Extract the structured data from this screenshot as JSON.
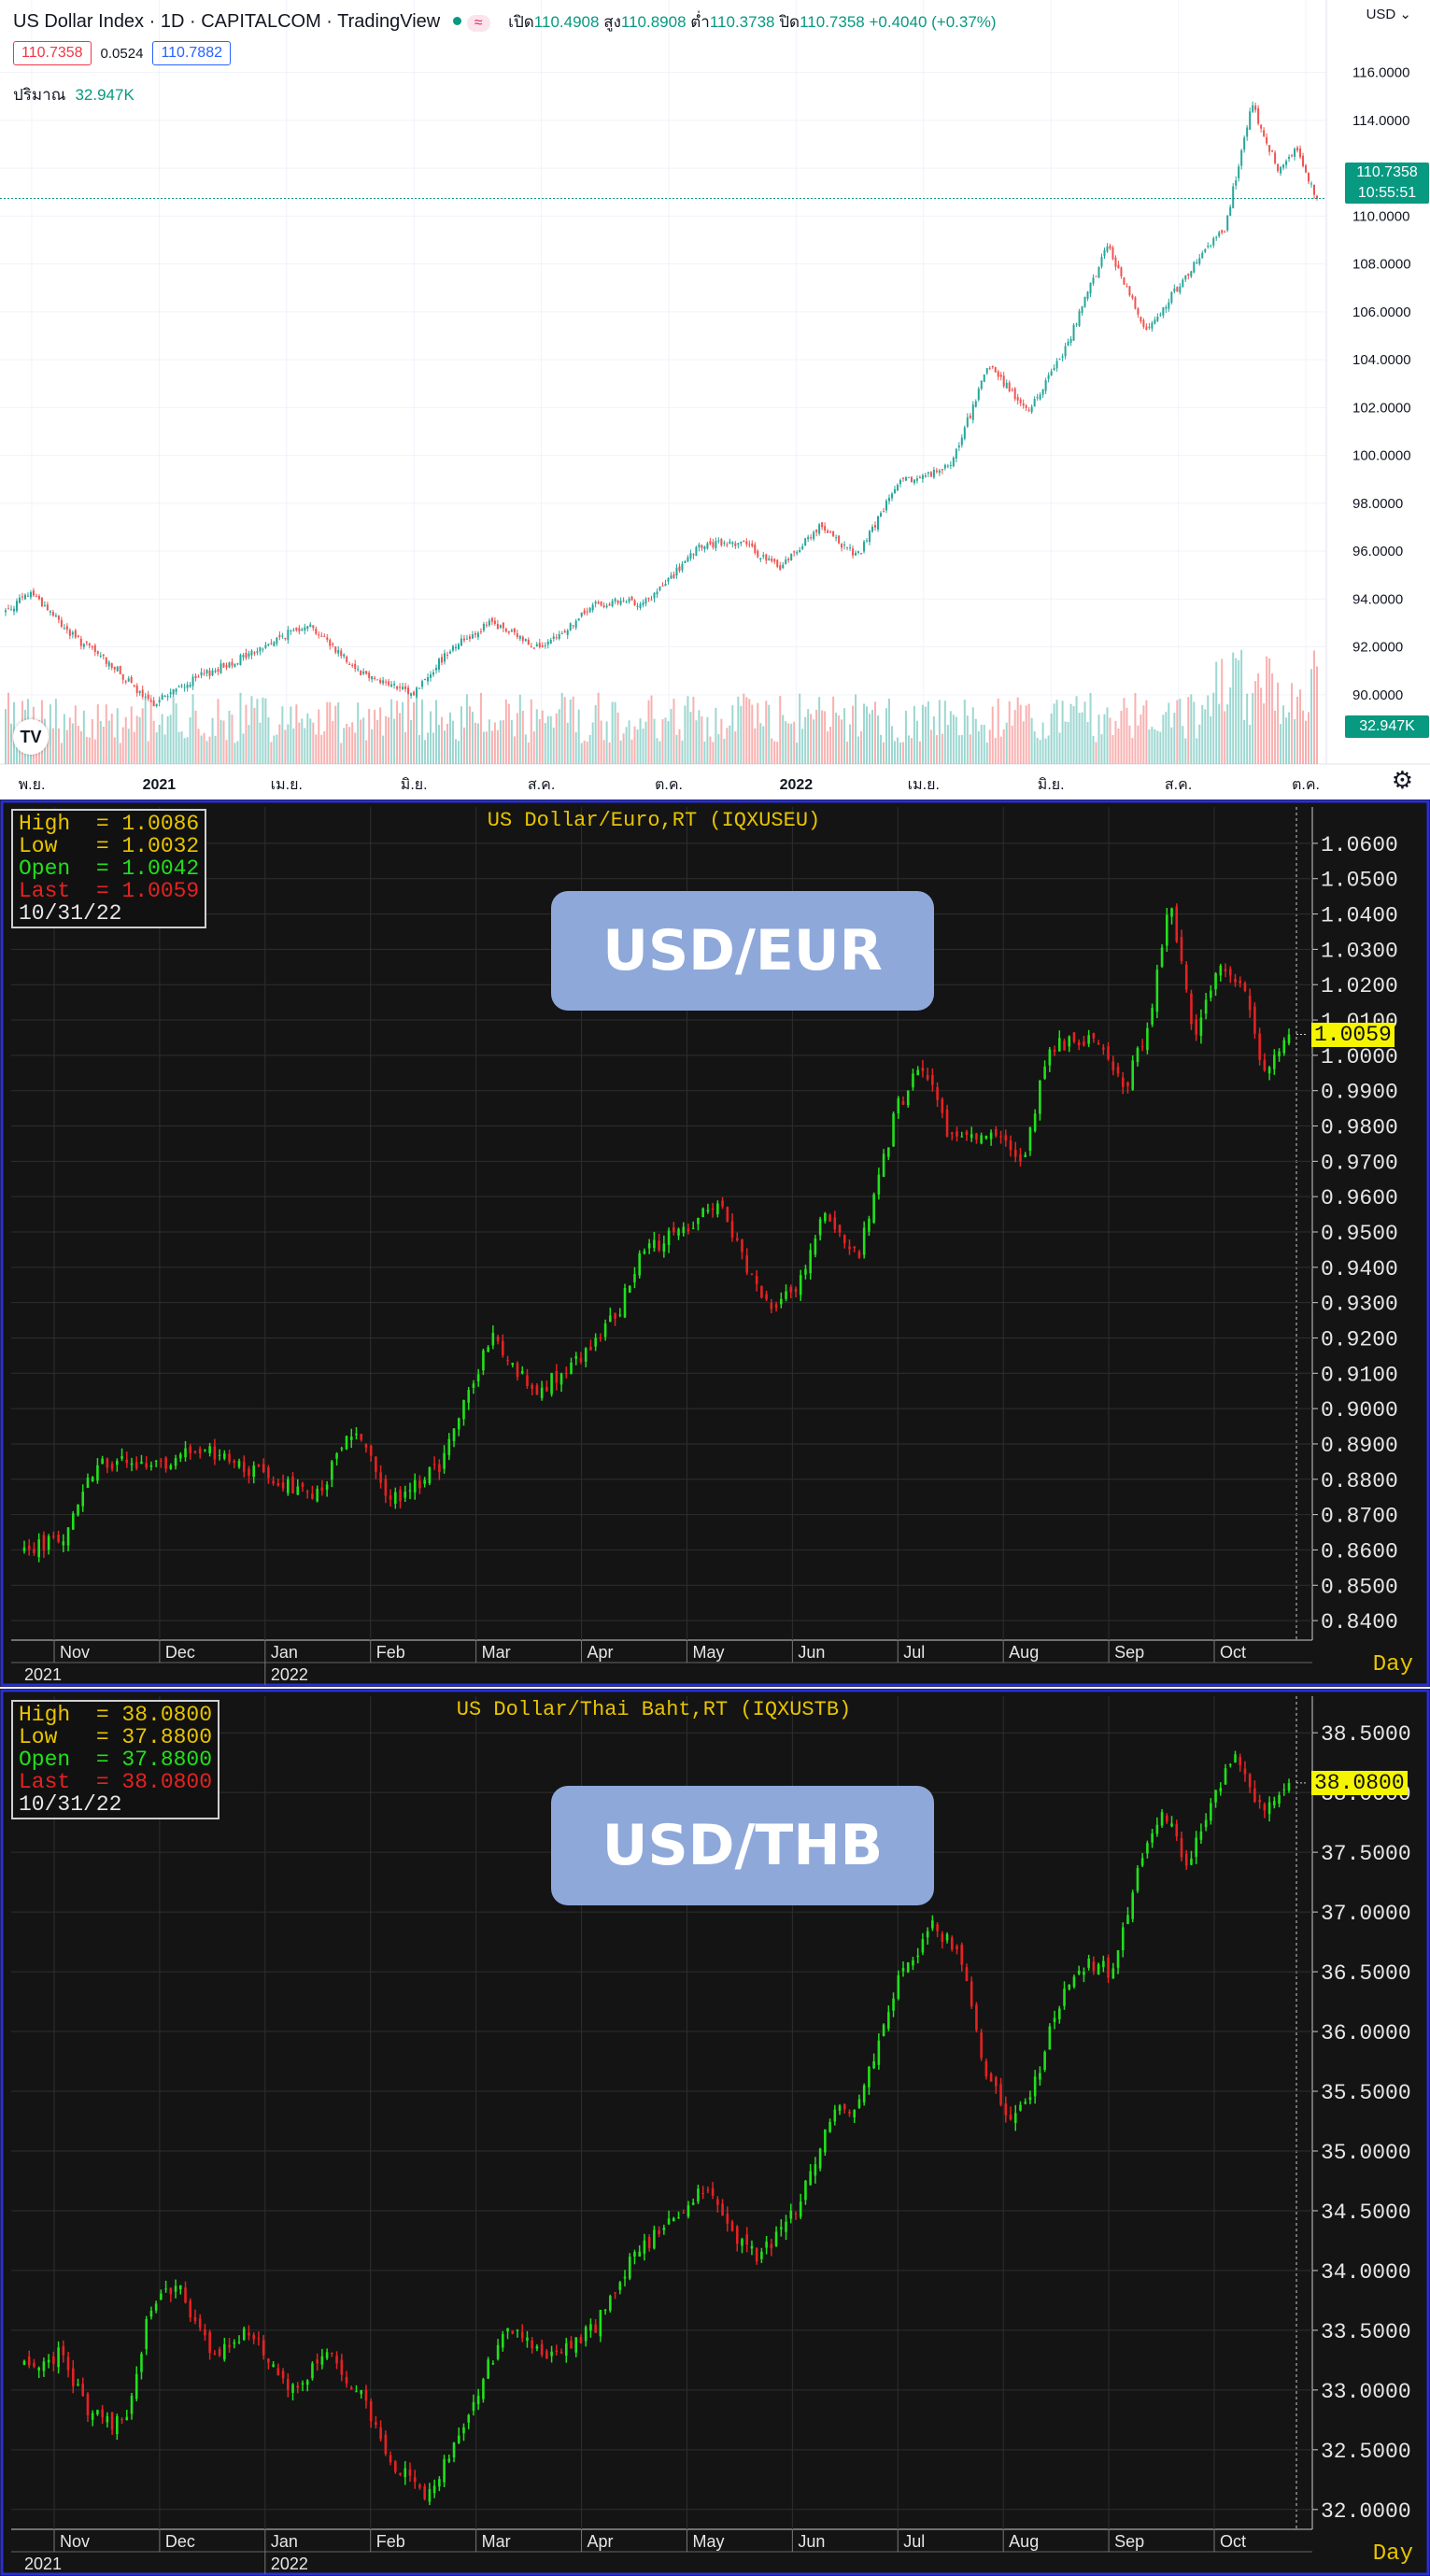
{
  "tradingview": {
    "symbol": "US Dollar Index",
    "interval": "1D",
    "broker": "CAPITALCOM",
    "platform": "TradingView",
    "wave_badge": "≈",
    "ohlc": {
      "open_label": "เปิด",
      "open": "110.4908",
      "high_label": "สูง",
      "high": "110.8908",
      "low_label": "ต่ำ",
      "low": "110.3738",
      "close_label": "ปิด",
      "close": "110.7358",
      "change": "+0.4040 (+0.37%)"
    },
    "bid": "110.7358",
    "spread": "0.0524",
    "ask": "110.7882",
    "volume_label": "ปริมาณ",
    "volume": "32.947K",
    "currency": "USD",
    "price_tag": "110.7358",
    "countdown": "10:55:51",
    "volume_tag": "32.947K",
    "logo": "TV",
    "settings_icon": "gear-icon",
    "colors": {
      "up": "#26a69a",
      "down": "#ef5350",
      "accent": "#089981"
    }
  },
  "chart_data": [
    {
      "type": "candlestick",
      "title": "US Dollar Index · 1D · CAPITALCOM",
      "y_ticks": [
        90,
        92,
        94,
        96,
        98,
        100,
        102,
        104,
        106,
        108,
        110,
        112,
        114,
        116
      ],
      "y_tick_labels": [
        "90.0000",
        "92.0000",
        "94.0000",
        "96.0000",
        "98.0000",
        "100.0000",
        "102.0000",
        "104.0000",
        "106.0000",
        "108.0000",
        "110.0000",
        "112.0000",
        "114.0000",
        "116.0000"
      ],
      "ylim": [
        88.2,
        117.0
      ],
      "x_tick_labels": [
        "พ.ย.",
        "2021",
        "เม.ย.",
        "มิ.ย.",
        "ส.ค.",
        "ต.ค.",
        "2022",
        "เม.ย.",
        "มิ.ย.",
        "ส.ค.",
        "ต.ค."
      ],
      "x_range": [
        "2020-11",
        "2022-10"
      ],
      "last": 110.7358,
      "keypoints": [
        [
          0,
          93.5
        ],
        [
          0.02,
          94.3
        ],
        [
          0.05,
          92.5
        ],
        [
          0.08,
          91.3
        ],
        [
          0.11,
          89.6
        ],
        [
          0.15,
          90.8
        ],
        [
          0.19,
          91.8
        ],
        [
          0.23,
          93.0
        ],
        [
          0.27,
          91.0
        ],
        [
          0.31,
          90.0
        ],
        [
          0.34,
          92.0
        ],
        [
          0.37,
          93.0
        ],
        [
          0.41,
          91.9
        ],
        [
          0.45,
          93.8
        ],
        [
          0.49,
          93.9
        ],
        [
          0.53,
          96.2
        ],
        [
          0.56,
          96.4
        ],
        [
          0.59,
          95.3
        ],
        [
          0.62,
          97.0
        ],
        [
          0.65,
          95.8
        ],
        [
          0.68,
          98.8
        ],
        [
          0.72,
          99.5
        ],
        [
          0.75,
          103.8
        ],
        [
          0.78,
          101.8
        ],
        [
          0.81,
          104.7
        ],
        [
          0.84,
          108.8
        ],
        [
          0.87,
          105.2
        ],
        [
          0.9,
          107.5
        ],
        [
          0.93,
          109.5
        ],
        [
          0.95,
          114.7
        ],
        [
          0.97,
          112.0
        ],
        [
          0.985,
          112.8
        ],
        [
          1.0,
          110.7
        ]
      ],
      "volume_max_label": "32.947K"
    },
    {
      "type": "candlestick",
      "title": "US Dollar/Euro,RT (IQXUSEU)",
      "y_ticks": [
        0.84,
        0.85,
        0.86,
        0.87,
        0.88,
        0.89,
        0.9,
        0.91,
        0.92,
        0.93,
        0.94,
        0.95,
        0.96,
        0.97,
        0.98,
        0.99,
        1.0,
        1.01,
        1.02,
        1.03,
        1.04,
        1.05,
        1.06
      ],
      "y_tick_labels": [
        "0.8400",
        "0.8500",
        "0.8600",
        "0.8700",
        "0.8800",
        "0.8900",
        "0.9000",
        "0.9100",
        "0.9200",
        "0.9300",
        "0.9400",
        "0.9500",
        "0.9600",
        "0.9700",
        "0.9800",
        "0.9900",
        "1.0000",
        "1.0100",
        "1.0200",
        "1.0300",
        "1.0400",
        "1.0500",
        "1.0600"
      ],
      "ylim": [
        0.835,
        1.065
      ],
      "x_tick_labels": [
        "Nov",
        "Dec",
        "Jan",
        "Feb",
        "Mar",
        "Apr",
        "May",
        "Jun",
        "Jul",
        "Aug",
        "Sep",
        "Oct"
      ],
      "year_labels": [
        "2021",
        "2022"
      ],
      "info": {
        "high": "1.0086",
        "low": "1.0032",
        "open": "1.0042",
        "last": "1.0059",
        "date": "10/31/22"
      },
      "last": 1.0059,
      "last_label": "1.0059",
      "period": "Day",
      "keypoints": [
        [
          0,
          0.86
        ],
        [
          0.03,
          0.864
        ],
        [
          0.06,
          0.886
        ],
        [
          0.09,
          0.883
        ],
        [
          0.14,
          0.888
        ],
        [
          0.2,
          0.88
        ],
        [
          0.23,
          0.874
        ],
        [
          0.26,
          0.894
        ],
        [
          0.29,
          0.874
        ],
        [
          0.33,
          0.884
        ],
        [
          0.37,
          0.922
        ],
        [
          0.4,
          0.905
        ],
        [
          0.43,
          0.91
        ],
        [
          0.47,
          0.928
        ],
        [
          0.49,
          0.945
        ],
        [
          0.53,
          0.952
        ],
        [
          0.55,
          0.96
        ],
        [
          0.57,
          0.94
        ],
        [
          0.59,
          0.93
        ],
        [
          0.61,
          0.932
        ],
        [
          0.63,
          0.955
        ],
        [
          0.66,
          0.944
        ],
        [
          0.69,
          0.985
        ],
        [
          0.71,
          0.998
        ],
        [
          0.73,
          0.979
        ],
        [
          0.77,
          0.977
        ],
        [
          0.79,
          0.97
        ],
        [
          0.81,
          1.003
        ],
        [
          0.85,
          1.005
        ],
        [
          0.87,
          0.99
        ],
        [
          0.89,
          1.01
        ],
        [
          0.905,
          1.045
        ],
        [
          0.925,
          1.005
        ],
        [
          0.945,
          1.025
        ],
        [
          0.965,
          1.018
        ],
        [
          0.98,
          0.993
        ],
        [
          1.0,
          1.006
        ]
      ]
    },
    {
      "type": "candlestick",
      "title": "US Dollar/Thai Baht,RT (IQXUSTB)",
      "y_ticks": [
        32.0,
        32.5,
        33.0,
        33.5,
        34.0,
        34.5,
        35.0,
        35.5,
        36.0,
        36.5,
        37.0,
        37.5,
        38.0,
        38.5
      ],
      "y_tick_labels": [
        "32.0000",
        "32.5000",
        "33.0000",
        "33.5000",
        "34.0000",
        "34.5000",
        "35.0000",
        "35.5000",
        "36.0000",
        "36.5000",
        "37.0000",
        "37.5000",
        "38.0000",
        "38.5000"
      ],
      "ylim": [
        31.85,
        38.65
      ],
      "x_tick_labels": [
        "Nov",
        "Dec",
        "Jan",
        "Feb",
        "Mar",
        "Apr",
        "May",
        "Jun",
        "Jul",
        "Aug",
        "Sep",
        "Oct"
      ],
      "year_labels": [
        "2021",
        "2022"
      ],
      "info": {
        "high": "38.0800",
        "low": "37.8800",
        "open": "37.8800",
        "last": "38.0800",
        "date": "10/31/22"
      },
      "last": 38.08,
      "last_label": "38.0800",
      "period": "Day",
      "keypoints": [
        [
          0,
          33.2
        ],
        [
          0.03,
          33.3
        ],
        [
          0.05,
          32.8
        ],
        [
          0.08,
          32.7
        ],
        [
          0.1,
          33.7
        ],
        [
          0.12,
          33.9
        ],
        [
          0.15,
          33.3
        ],
        [
          0.18,
          33.5
        ],
        [
          0.21,
          33.0
        ],
        [
          0.24,
          33.3
        ],
        [
          0.27,
          32.9
        ],
        [
          0.29,
          32.4
        ],
        [
          0.32,
          32.1
        ],
        [
          0.35,
          32.8
        ],
        [
          0.38,
          33.5
        ],
        [
          0.41,
          33.3
        ],
        [
          0.45,
          33.5
        ],
        [
          0.48,
          34.1
        ],
        [
          0.51,
          34.4
        ],
        [
          0.54,
          34.7
        ],
        [
          0.56,
          34.3
        ],
        [
          0.58,
          34.1
        ],
        [
          0.61,
          34.5
        ],
        [
          0.64,
          35.3
        ],
        [
          0.66,
          35.4
        ],
        [
          0.69,
          36.4
        ],
        [
          0.72,
          36.9
        ],
        [
          0.74,
          36.6
        ],
        [
          0.76,
          35.7
        ],
        [
          0.78,
          35.2
        ],
        [
          0.8,
          35.6
        ],
        [
          0.82,
          36.3
        ],
        [
          0.84,
          36.6
        ],
        [
          0.86,
          36.5
        ],
        [
          0.88,
          37.3
        ],
        [
          0.9,
          37.9
        ],
        [
          0.92,
          37.4
        ],
        [
          0.94,
          38.0
        ],
        [
          0.96,
          38.3
        ],
        [
          0.98,
          37.8
        ],
        [
          1.0,
          38.08
        ]
      ]
    }
  ],
  "overlay": {
    "eur_label": "USD/EUR",
    "thb_label": "USD/THB"
  },
  "panel_colors": {
    "bg": "#141414",
    "up": "#22e01c",
    "down": "#e52222",
    "text": "#e8c400",
    "frame": "#2a2fd0"
  }
}
